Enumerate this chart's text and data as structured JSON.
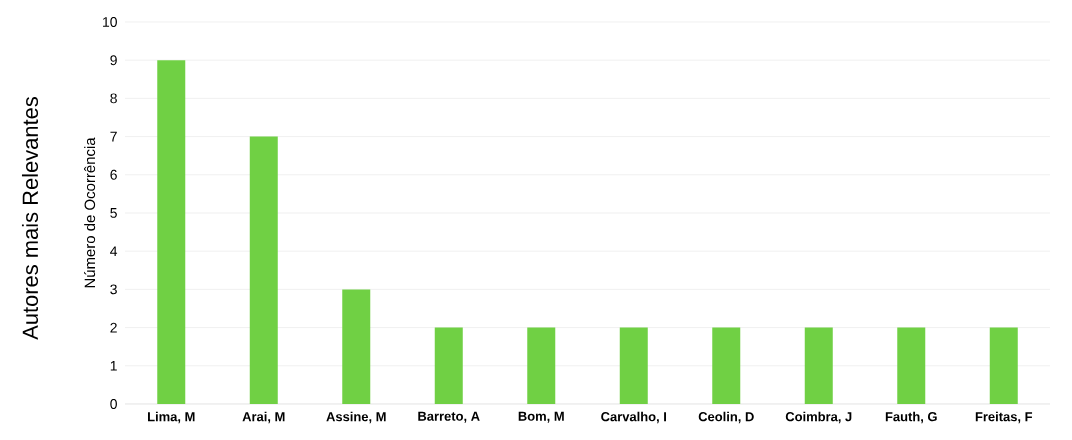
{
  "chart_data": {
    "type": "bar",
    "title": "Autores mais Relevantes",
    "ylabel": "Número de Ocorrência",
    "categories": [
      "Lima, M",
      "Arai, M",
      "Assine, M",
      "Barreto, A",
      "Bom, M",
      "Carvalho, I",
      "Ceolin, D",
      "Coimbra, J",
      "Fauth, G",
      "Freitas, F"
    ],
    "values": [
      9,
      7,
      3,
      2,
      2,
      2,
      2,
      2,
      2,
      2
    ],
    "color": "#70d044",
    "ylim": [
      0,
      10
    ],
    "yticks": [
      0,
      1,
      2,
      3,
      4,
      5,
      6,
      7,
      8,
      9,
      10
    ],
    "grid": "y"
  }
}
